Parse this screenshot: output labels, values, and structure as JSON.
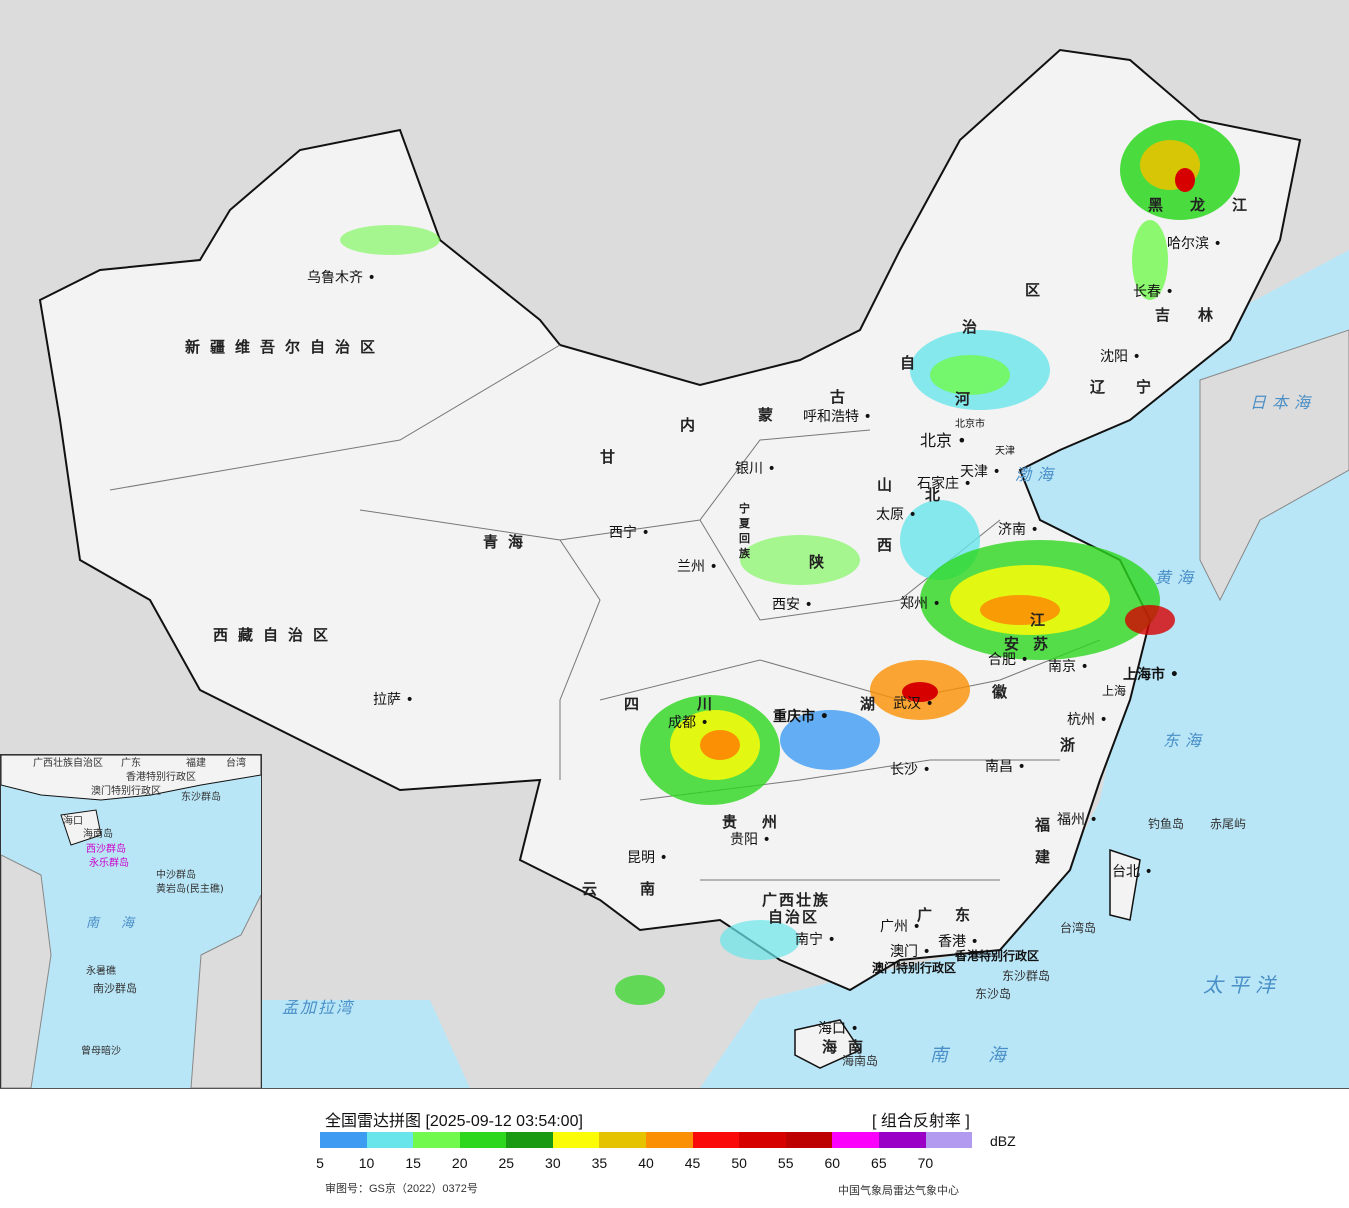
{
  "legend": {
    "title": "全国雷达拼图 [2025-09-12 03:54:00]",
    "product": "[ 组合反射率 ]",
    "unit": "dBZ",
    "ticks": [
      "5",
      "10",
      "15",
      "20",
      "25",
      "30",
      "35",
      "40",
      "45",
      "50",
      "55",
      "60",
      "65",
      "70"
    ],
    "colors": [
      "#3d9bf2",
      "#68e5ea",
      "#71f94d",
      "#2cd71d",
      "#1a9a12",
      "#fbfc08",
      "#e6c300",
      "#fb9004",
      "#fb0a0a",
      "#d60000",
      "#bd0000",
      "#fb00fb",
      "#9a00c5",
      "#b29af0"
    ],
    "approval": "审图号：GS京（2022）0372号",
    "agency": "中国气象局雷达气象中心"
  },
  "provinces": [
    "新疆维吾尔自治区",
    "西藏自治区",
    "青海",
    "甘",
    "内",
    "蒙",
    "古",
    "自",
    "治",
    "区",
    "黑",
    "龙",
    "江",
    "吉",
    "林",
    "辽",
    "宁",
    "河",
    "北",
    "山",
    "西",
    "陕",
    "四",
    "川",
    "云",
    "南",
    "贵",
    "州",
    "湖",
    "江",
    "苏",
    "安",
    "徽",
    "浙",
    "福",
    "建",
    "广",
    "东",
    "广西壮族",
    "自治区",
    "海",
    "南",
    "宁",
    "夏",
    "回",
    "族"
  ],
  "cities": [
    "乌鲁木齐",
    "拉萨",
    "西宁",
    "兰州",
    "银川",
    "呼和浩特",
    "北京",
    "天津",
    "石家庄",
    "太原",
    "济南",
    "郑州",
    "西安",
    "成都",
    "重庆市",
    "贵阳",
    "昆明",
    "南宁",
    "长沙",
    "武汉",
    "合肥",
    "南京",
    "上海市",
    "杭州",
    "南昌",
    "福州",
    "台北",
    "广州",
    "澳门",
    "香港",
    "海口",
    "哈尔滨",
    "长春",
    "沈阳"
  ],
  "special": [
    "北京市",
    "天津",
    "香港特别行政区",
    "澳门特别行政区",
    "上海"
  ],
  "seas": [
    "日本海",
    "渤海",
    "黄海",
    "东海",
    "太平洋",
    "南海",
    "孟加拉湾"
  ],
  "islands": [
    "钓鱼岛",
    "赤尾屿",
    "台湾岛",
    "东沙群岛",
    "东沙岛",
    "海南岛"
  ],
  "inset": {
    "labels": [
      "广西壮族自治区",
      "广东",
      "福建",
      "台湾",
      "香港特别行政区",
      "澳门特别行政区",
      "东沙群岛",
      "海口",
      "海南岛",
      "西沙群岛",
      "永乐群岛",
      "中沙群岛",
      "黄岩岛(民主礁)",
      "南",
      "海",
      "永暑礁",
      "南沙群岛",
      "曾母暗沙"
    ]
  }
}
